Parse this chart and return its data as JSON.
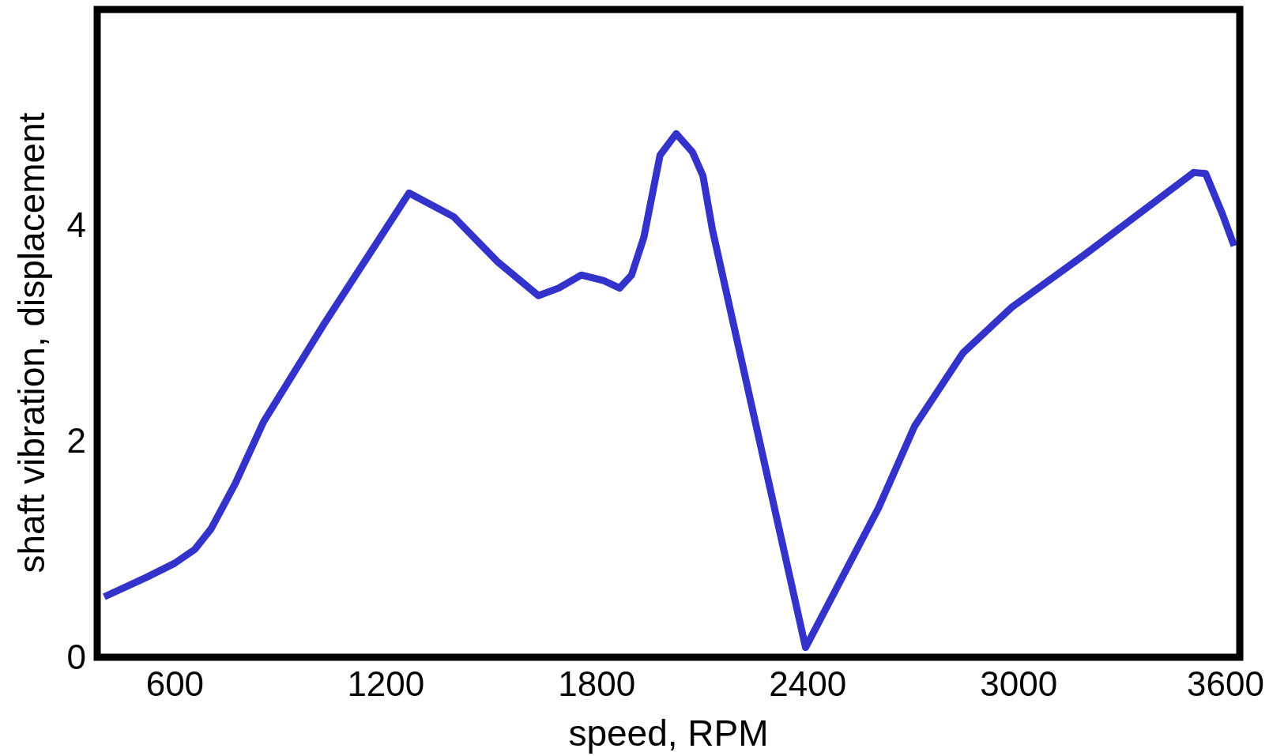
{
  "chart_data": {
    "type": "line",
    "xlabel": "speed, RPM",
    "ylabel": "shaft vibration, displacement",
    "xlim": [
      380,
      3630
    ],
    "ylim": [
      0,
      6
    ],
    "xticks": [
      600,
      1200,
      1800,
      2400,
      3000,
      3600
    ],
    "yticks": [
      0,
      2,
      4
    ],
    "x": [
      400,
      520,
      600,
      658,
      704,
      773,
      853,
      1026,
      1267,
      1394,
      1520,
      1635,
      1693,
      1757,
      1820,
      1866,
      1900,
      1935,
      1981,
      2027,
      2073,
      2103,
      2130,
      2395,
      2602,
      2705,
      2843,
      2981,
      3189,
      3499,
      3533,
      3580,
      3614
    ],
    "series": [
      {
        "color": "#3333cc",
        "values": [
          0.56,
          0.74,
          0.87,
          1.0,
          1.19,
          1.61,
          2.18,
          3.09,
          4.3,
          4.08,
          3.66,
          3.35,
          3.42,
          3.54,
          3.49,
          3.42,
          3.54,
          3.89,
          4.65,
          4.85,
          4.68,
          4.46,
          3.96,
          0.09,
          1.38,
          2.14,
          2.82,
          3.24,
          3.73,
          4.49,
          4.48,
          4.11,
          3.81
        ]
      }
    ],
    "grid": false,
    "marker": "none",
    "line_style": "solid"
  }
}
